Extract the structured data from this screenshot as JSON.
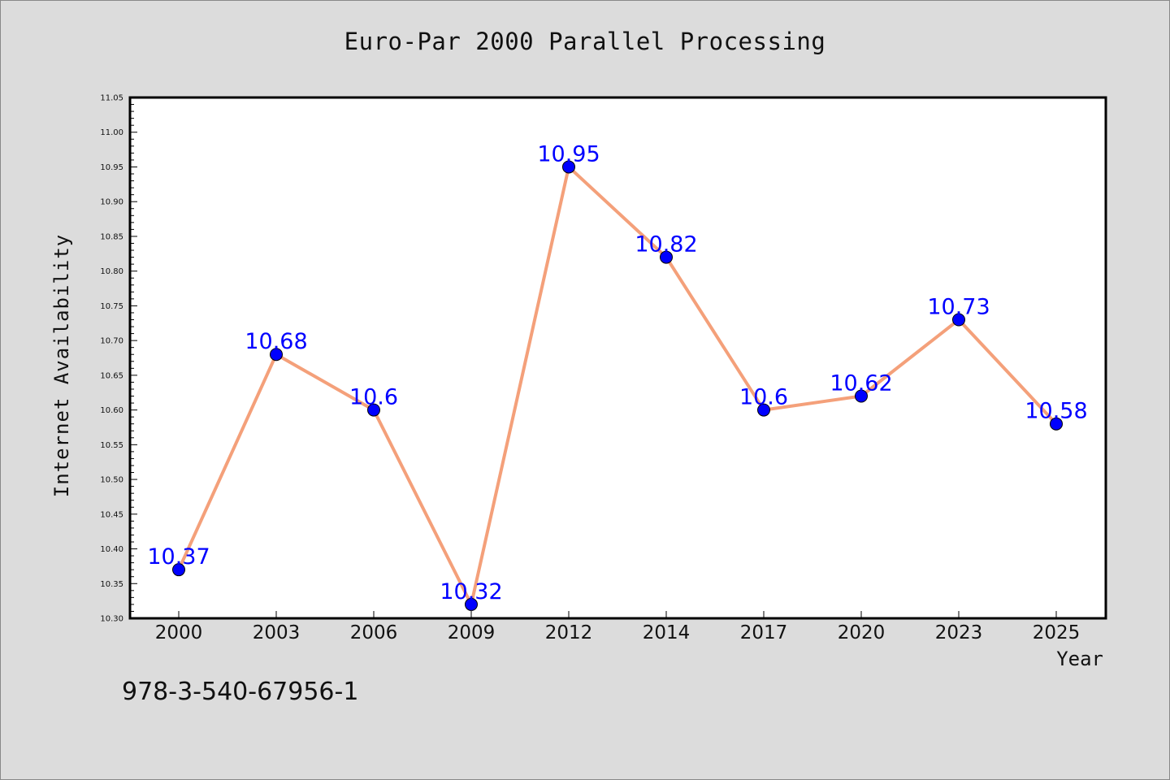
{
  "chart_data": {
    "type": "line",
    "title": "Euro-Par 2000 Parallel Processing",
    "xlabel": "Year",
    "ylabel": "Internet Availability",
    "categories": [
      "2000",
      "2003",
      "2006",
      "2009",
      "2012",
      "2014",
      "2017",
      "2020",
      "2023",
      "2025"
    ],
    "values": [
      10.37,
      10.68,
      10.6,
      10.32,
      10.95,
      10.82,
      10.6,
      10.62,
      10.73,
      10.58
    ],
    "data_labels": [
      "10.37",
      "10.68",
      "10.6",
      "10.32",
      "10.95",
      "10.82",
      "10.6",
      "10.62",
      "10.73",
      "10.58"
    ],
    "ylim": [
      10.3,
      11.05
    ],
    "yticks": [
      "10.30",
      "10.35",
      "10.40",
      "10.45",
      "10.50",
      "10.55",
      "10.60",
      "10.65",
      "10.70",
      "10.75",
      "10.80",
      "10.85",
      "10.90",
      "10.95",
      "11.00",
      "11.05"
    ],
    "grid": false,
    "legend": false,
    "colors": {
      "line": "#f4a07a",
      "marker": "#0000ff",
      "label": "#0000ff",
      "background": "#dcdcdc",
      "plot_bg": "#ffffff"
    }
  },
  "footnote": "978-3-540-67956-1"
}
